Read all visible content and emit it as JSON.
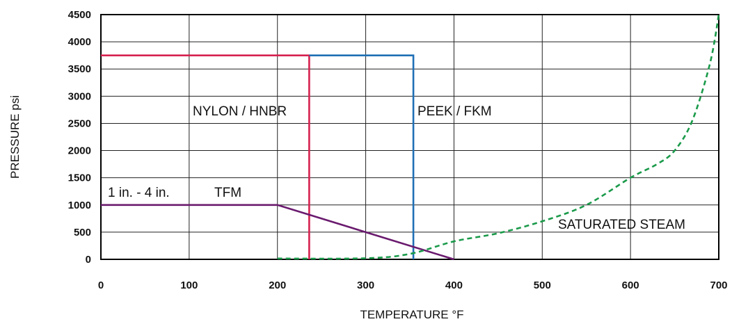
{
  "chart_data": {
    "type": "line",
    "xlabel": "TEMPERATURE °F",
    "ylabel": "PRESSURE psi",
    "xlim": [
      0,
      700
    ],
    "ylim": [
      0,
      4500
    ],
    "x_ticks": [
      "0",
      "100",
      "200",
      "300",
      "400",
      "500",
      "600",
      "700"
    ],
    "y_ticks": [
      "0",
      "500",
      "1000",
      "1500",
      "2000",
      "2500",
      "3000",
      "3500",
      "4000",
      "4500"
    ],
    "grid": true,
    "series": [
      {
        "name": "NYLON / HNBR",
        "color": "#d6214f",
        "dash": false,
        "x": [
          0,
          236,
          236
        ],
        "y": [
          3750,
          3750,
          0
        ]
      },
      {
        "name": "PEEK / FKM",
        "color": "#1f6fb5",
        "dash": false,
        "x": [
          236,
          354,
          354
        ],
        "y": [
          3750,
          3750,
          0
        ]
      },
      {
        "name": "TFM",
        "color": "#6a1a6e",
        "dash": false,
        "x": [
          0,
          200,
          400
        ],
        "y": [
          1000,
          1000,
          0
        ]
      },
      {
        "name": "SATURATED STEAM",
        "color": "#1a9a4a",
        "dash": true,
        "x": [
          200,
          300,
          350,
          400,
          450,
          500,
          550,
          600,
          630,
          650,
          670,
          690,
          700
        ],
        "y": [
          15,
          20,
          100,
          330,
          480,
          700,
          1000,
          1500,
          1750,
          2000,
          2550,
          3600,
          4500
        ]
      }
    ],
    "annotations": {
      "nylon_label": "NYLON / HNBR",
      "peek_label": "PEEK / FKM",
      "size_label": "1 in. - 4 in.",
      "tfm_label": "TFM",
      "steam_label": "SATURATED STEAM"
    }
  }
}
